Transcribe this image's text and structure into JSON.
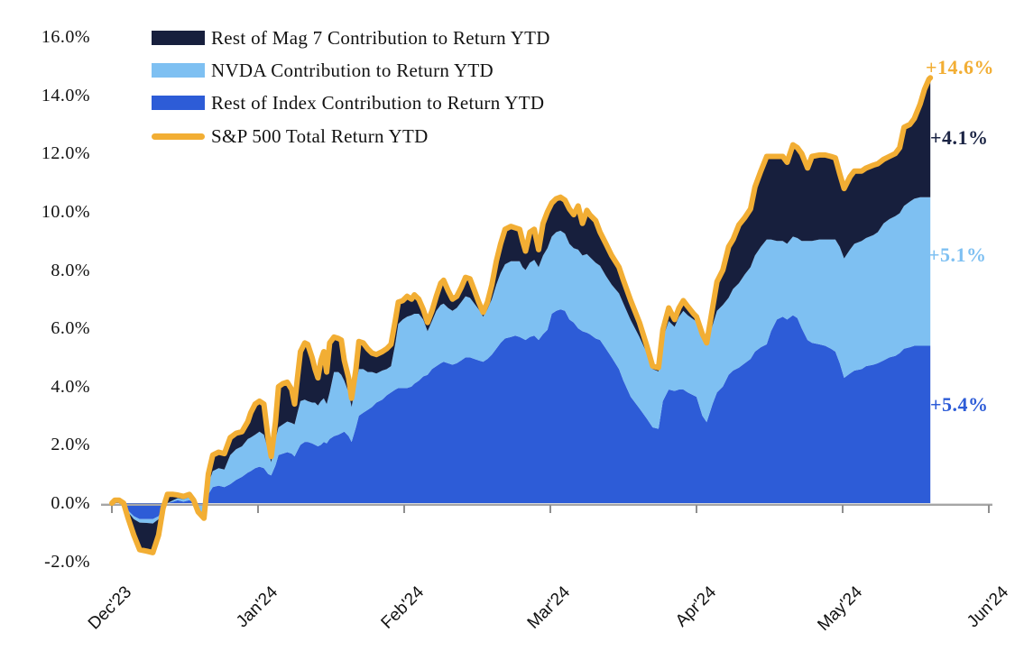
{
  "page": {
    "background": "#ffffff"
  },
  "chart_data": {
    "type": "area",
    "stacked": true,
    "title": "",
    "xlabel": "",
    "ylabel": "",
    "grid": false,
    "legend_position": "top-left-inside",
    "background": "#ffffff",
    "axis_color": "#a6a6a6",
    "y_axis_range": [
      -2.0,
      16.0
    ],
    "y_tick_step": 2.0,
    "y_ticks": [
      {
        "value": 16,
        "label": "16.0%"
      },
      {
        "value": 14,
        "label": "14.0%"
      },
      {
        "value": 12,
        "label": "12.0%"
      },
      {
        "value": 10,
        "label": "10.0%"
      },
      {
        "value": 8,
        "label": "8.0%"
      },
      {
        "value": 6,
        "label": "6.0%"
      },
      {
        "value": 4,
        "label": "4.0%"
      },
      {
        "value": 2,
        "label": "2.0%"
      },
      {
        "value": 0,
        "label": "0.0%"
      },
      {
        "value": -2,
        "label": "-2.0%"
      }
    ],
    "x_unit": "months since start of period (0 = Dec'23, 1 = Jan'24, ... 6 = Jun'24)",
    "x_ticks": [
      "Dec'23",
      "Jan'24",
      "Feb'24",
      "Mar'24",
      "Apr'24",
      "May'24",
      "Jun'24"
    ],
    "series": [
      {
        "key": "rest_of_index",
        "name": "Rest of Index Contribution to Return YTD",
        "color": "#2d5cd7",
        "type": "area",
        "final_label": "+5.4%"
      },
      {
        "key": "nvda",
        "name": "NVDA Contribution to Return YTD",
        "color": "#7ec0f2",
        "type": "area",
        "final_label": "+5.1%"
      },
      {
        "key": "rest_of_mag7",
        "name": "Rest of Mag 7 Contribution to Return YTD",
        "color": "#171f3d",
        "type": "area",
        "final_label": "+4.1%"
      },
      {
        "key": "total",
        "name": "S&P 500 Total Return YTD",
        "color": "#f2ae34",
        "type": "line",
        "derived": "sum of stacked areas",
        "final_label": "+14.6%"
      }
    ],
    "columns": [
      "t_months",
      "rest_of_index",
      "nvda",
      "rest_of_mag7"
    ],
    "points": [
      [
        0.0,
        0,
        0,
        0
      ],
      [
        0.02,
        0.05,
        0.01,
        0.04
      ],
      [
        0.05,
        0.06,
        0.02,
        0.02
      ],
      [
        0.08,
        0,
        0,
        0
      ],
      [
        0.11,
        -0.25,
        -0.05,
        -0.2
      ],
      [
        0.15,
        -0.45,
        -0.1,
        -0.55
      ],
      [
        0.19,
        -0.55,
        -0.12,
        -0.93
      ],
      [
        0.24,
        -0.55,
        -0.13,
        -0.97
      ],
      [
        0.28,
        -0.55,
        -0.15,
        -1.0
      ],
      [
        0.32,
        -0.45,
        -0.1,
        -0.55
      ],
      [
        0.35,
        -0.15,
        -0.03,
        0
      ],
      [
        0.38,
        0,
        0,
        0.3
      ],
      [
        0.42,
        0.05,
        0.05,
        0.2
      ],
      [
        0.45,
        0.1,
        0.07,
        0.11
      ],
      [
        0.49,
        0.05,
        0.08,
        0.1
      ],
      [
        0.53,
        0.1,
        0.1,
        0.1
      ],
      [
        0.56,
        0.02,
        0,
        0.08
      ],
      [
        0.59,
        -0.05,
        -0.25,
        0
      ],
      [
        0.63,
        -0.07,
        -0.45,
        0
      ],
      [
        0.66,
        0.3,
        0.35,
        0.35
      ],
      [
        0.69,
        0.55,
        0.55,
        0.55
      ],
      [
        0.73,
        0.6,
        0.6,
        0.55
      ],
      [
        0.77,
        0.55,
        0.6,
        0.55
      ],
      [
        0.81,
        0.65,
        1.0,
        0.6
      ],
      [
        0.85,
        0.8,
        1.05,
        0.55
      ],
      [
        0.89,
        0.9,
        1.05,
        0.5
      ],
      [
        0.93,
        1.05,
        1.15,
        0.6
      ],
      [
        0.95,
        1.1,
        1.15,
        0.85
      ],
      [
        0.98,
        1.2,
        1.15,
        1.05
      ],
      [
        1.01,
        1.25,
        1.2,
        1.05
      ],
      [
        1.04,
        1.2,
        1.15,
        1.05
      ],
      [
        1.07,
        1.0,
        0.8,
        0.4
      ],
      [
        1.09,
        0.95,
        0.45,
        0.2
      ],
      [
        1.12,
        1.3,
        0.9,
        0.6
      ],
      [
        1.14,
        1.65,
        0.95,
        1.4
      ],
      [
        1.17,
        1.7,
        1.0,
        1.4
      ],
      [
        1.2,
        1.75,
        1.05,
        1.35
      ],
      [
        1.23,
        1.7,
        1.05,
        1.15
      ],
      [
        1.25,
        1.6,
        1.1,
        0.7
      ],
      [
        1.27,
        1.8,
        1.3,
        1.2
      ],
      [
        1.29,
        2.0,
        1.5,
        1.7
      ],
      [
        1.32,
        2.1,
        1.45,
        1.95
      ],
      [
        1.34,
        2.1,
        1.4,
        1.95
      ],
      [
        1.37,
        2.05,
        1.4,
        1.55
      ],
      [
        1.39,
        2.0,
        1.45,
        1.15
      ],
      [
        1.41,
        1.95,
        1.4,
        0.95
      ],
      [
        1.43,
        2.0,
        1.5,
        1.4
      ],
      [
        1.45,
        2.1,
        1.5,
        1.6
      ],
      [
        1.47,
        2.05,
        1.35,
        1.1
      ],
      [
        1.49,
        2.2,
        1.6,
        1.7
      ],
      [
        1.52,
        2.3,
        2.2,
        1.2
      ],
      [
        1.55,
        2.35,
        2.15,
        1.15
      ],
      [
        1.57,
        2.4,
        2.0,
        1.2
      ],
      [
        1.59,
        2.45,
        1.75,
        0.7
      ],
      [
        1.62,
        2.3,
        1.5,
        0.5
      ],
      [
        1.64,
        2.1,
        1.2,
        0.3
      ],
      [
        1.67,
        2.6,
        1.5,
        0.5
      ],
      [
        1.69,
        3.0,
        1.6,
        0.95
      ],
      [
        1.72,
        3.1,
        1.5,
        0.9
      ],
      [
        1.75,
        3.2,
        1.3,
        0.8
      ],
      [
        1.78,
        3.3,
        1.2,
        0.65
      ],
      [
        1.81,
        3.45,
        1.0,
        0.65
      ],
      [
        1.85,
        3.55,
        1.0,
        0.65
      ],
      [
        1.88,
        3.7,
        0.9,
        0.7
      ],
      [
        1.91,
        3.8,
        0.9,
        0.75
      ],
      [
        1.94,
        3.9,
        1.6,
        0.8
      ],
      [
        1.96,
        3.95,
        2.2,
        0.75
      ],
      [
        1.99,
        3.95,
        2.35,
        0.65
      ],
      [
        2.02,
        3.95,
        2.45,
        0.7
      ],
      [
        2.05,
        4.0,
        2.45,
        0.55
      ],
      [
        2.07,
        4.1,
        2.4,
        0.65
      ],
      [
        2.1,
        4.2,
        2.3,
        0.5
      ],
      [
        2.13,
        4.35,
        1.95,
        0.35
      ],
      [
        2.16,
        4.4,
        1.5,
        0.3
      ],
      [
        2.19,
        4.6,
        1.65,
        0.35
      ],
      [
        2.22,
        4.7,
        1.9,
        0.5
      ],
      [
        2.25,
        4.8,
        2.0,
        0.75
      ],
      [
        2.27,
        4.85,
        2.0,
        0.8
      ],
      [
        2.3,
        4.8,
        1.9,
        0.6
      ],
      [
        2.33,
        4.75,
        1.85,
        0.4
      ],
      [
        2.36,
        4.8,
        1.9,
        0.4
      ],
      [
        2.39,
        4.9,
        2.0,
        0.5
      ],
      [
        2.42,
        5.0,
        2.1,
        0.65
      ],
      [
        2.45,
        5.0,
        2.05,
        0.65
      ],
      [
        2.48,
        4.95,
        1.9,
        0.45
      ],
      [
        2.51,
        4.9,
        1.75,
        0.25
      ],
      [
        2.54,
        4.85,
        1.55,
        0.15
      ],
      [
        2.57,
        4.95,
        1.7,
        0.25
      ],
      [
        2.6,
        5.1,
        1.9,
        0.5
      ],
      [
        2.63,
        5.3,
        2.2,
        0.8
      ],
      [
        2.66,
        5.5,
        2.4,
        1.0
      ],
      [
        2.69,
        5.65,
        2.55,
        1.2
      ],
      [
        2.73,
        5.7,
        2.6,
        1.2
      ],
      [
        2.76,
        5.75,
        2.55,
        1.15
      ],
      [
        2.79,
        5.7,
        2.6,
        1.1
      ],
      [
        2.81,
        5.65,
        2.45,
        0.9
      ],
      [
        2.83,
        5.6,
        2.4,
        0.65
      ],
      [
        2.86,
        5.7,
        2.55,
        1.05
      ],
      [
        2.89,
        5.75,
        2.6,
        1.05
      ],
      [
        2.92,
        5.6,
        2.5,
        0.6
      ],
      [
        2.95,
        5.8,
        2.7,
        1.1
      ],
      [
        2.98,
        5.95,
        2.8,
        1.25
      ],
      [
        3.01,
        6.5,
        2.65,
        1.15
      ],
      [
        3.04,
        6.6,
        2.7,
        1.15
      ],
      [
        3.07,
        6.65,
        2.7,
        1.15
      ],
      [
        3.1,
        6.6,
        2.65,
        1.15
      ],
      [
        3.13,
        6.3,
        2.6,
        1.2
      ],
      [
        3.16,
        6.2,
        2.55,
        1.15
      ],
      [
        3.19,
        6.0,
        2.7,
        1.5
      ],
      [
        3.22,
        5.9,
        2.6,
        1.1
      ],
      [
        3.25,
        5.85,
        2.7,
        1.5
      ],
      [
        3.27,
        5.8,
        2.65,
        1.45
      ],
      [
        3.31,
        5.65,
        2.6,
        1.45
      ],
      [
        3.34,
        5.6,
        2.55,
        1.15
      ],
      [
        3.38,
        5.3,
        2.5,
        1.1
      ],
      [
        3.42,
        5.0,
        2.5,
        1.0
      ],
      [
        3.47,
        4.6,
        2.6,
        0.9
      ],
      [
        3.5,
        4.2,
        2.65,
        0.8
      ],
      [
        3.55,
        3.65,
        2.63,
        0.67
      ],
      [
        3.61,
        3.25,
        2.45,
        0.5
      ],
      [
        3.66,
        2.9,
        2.25,
        0.25
      ],
      [
        3.7,
        2.6,
        2.0,
        0.1
      ],
      [
        3.74,
        2.55,
        1.97,
        0.13
      ],
      [
        3.77,
        3.5,
        2.15,
        0.3
      ],
      [
        3.81,
        3.9,
        2.35,
        0.45
      ],
      [
        3.85,
        3.85,
        2.2,
        0.25
      ],
      [
        3.88,
        3.9,
        2.5,
        0.3
      ],
      [
        3.91,
        3.9,
        2.7,
        0.35
      ],
      [
        3.94,
        3.8,
        2.65,
        0.3
      ],
      [
        3.98,
        3.7,
        2.6,
        0.2
      ],
      [
        4.0,
        3.65,
        2.58,
        0.17
      ],
      [
        4.04,
        3.0,
        2.65,
        0.15
      ],
      [
        4.07,
        2.78,
        2.64,
        0.08
      ],
      [
        4.11,
        3.4,
        2.7,
        0.6
      ],
      [
        4.14,
        3.8,
        2.8,
        1.0
      ],
      [
        4.18,
        4.0,
        2.8,
        1.2
      ],
      [
        4.22,
        4.4,
        2.65,
        1.75
      ],
      [
        4.25,
        4.55,
        2.8,
        1.7
      ],
      [
        4.29,
        4.65,
        2.9,
        2.0
      ],
      [
        4.33,
        4.8,
        3.05,
        1.95
      ],
      [
        4.37,
        4.95,
        3.15,
        2.0
      ],
      [
        4.4,
        5.2,
        3.3,
        2.35
      ],
      [
        4.44,
        5.35,
        3.45,
        2.6
      ],
      [
        4.48,
        5.45,
        3.6,
        2.85
      ],
      [
        4.51,
        5.9,
        3.15,
        2.85
      ],
      [
        4.55,
        6.3,
        2.7,
        2.9
      ],
      [
        4.59,
        6.4,
        2.6,
        2.9
      ],
      [
        4.62,
        6.3,
        2.6,
        2.8
      ],
      [
        4.66,
        6.45,
        2.7,
        3.15
      ],
      [
        4.69,
        6.35,
        2.75,
        3.1
      ],
      [
        4.72,
        6.0,
        3.0,
        3.0
      ],
      [
        4.76,
        5.6,
        3.4,
        2.5
      ],
      [
        4.79,
        5.5,
        3.5,
        2.9
      ],
      [
        4.84,
        5.45,
        3.6,
        2.9
      ],
      [
        4.88,
        5.4,
        3.65,
        2.9
      ],
      [
        4.92,
        5.3,
        3.75,
        2.85
      ],
      [
        4.95,
        5.2,
        3.85,
        2.8
      ],
      [
        4.98,
        4.8,
        4.0,
        2.5
      ],
      [
        5.01,
        4.3,
        4.1,
        2.4
      ],
      [
        5.05,
        4.45,
        4.25,
        2.5
      ],
      [
        5.08,
        4.55,
        4.35,
        2.5
      ],
      [
        5.13,
        4.6,
        4.4,
        2.4
      ],
      [
        5.16,
        4.7,
        4.4,
        2.4
      ],
      [
        5.21,
        4.75,
        4.45,
        2.4
      ],
      [
        5.24,
        4.8,
        4.5,
        2.35
      ],
      [
        5.28,
        4.9,
        4.7,
        2.2
      ],
      [
        5.32,
        5.0,
        4.75,
        2.15
      ],
      [
        5.36,
        5.05,
        4.8,
        2.15
      ],
      [
        5.39,
        5.15,
        4.8,
        2.25
      ],
      [
        5.42,
        5.3,
        4.9,
        2.7
      ],
      [
        5.46,
        5.35,
        5.0,
        2.65
      ],
      [
        5.49,
        5.4,
        5.05,
        2.75
      ],
      [
        5.53,
        5.4,
        5.1,
        3.2
      ],
      [
        5.56,
        5.4,
        5.1,
        3.7
      ],
      [
        5.59,
        5.4,
        5.1,
        4.05
      ],
      [
        5.6,
        5.4,
        5.1,
        4.1
      ]
    ],
    "end_values": {
      "total": "+14.6%",
      "rest_of_mag7": "+4.1%",
      "nvda": "+5.1%",
      "rest_of_index": "+5.4%"
    }
  },
  "legend": {
    "items": [
      {
        "label": "Rest of Mag 7 Contribution to Return YTD",
        "swatch": "navy-rect",
        "color": "#171f3d"
      },
      {
        "label": "NVDA Contribution to Return YTD",
        "swatch": "lightblue-rect",
        "color": "#7ec0f2"
      },
      {
        "label": "Rest of Index Contribution to Return YTD",
        "swatch": "blue-rect",
        "color": "#2d5cd7"
      },
      {
        "label": "S&P 500 Total Return YTD",
        "swatch": "gold-line",
        "color": "#f2ae34"
      }
    ]
  },
  "annotations": [
    {
      "text": "+14.6%",
      "color": "#f2ae34",
      "series": "S&P 500 Total Return YTD"
    },
    {
      "text": "+4.1%",
      "color": "#1b2444",
      "series": "Rest of Mag 7 Contribution to Return YTD"
    },
    {
      "text": "+5.1%",
      "color": "#7ec0f2",
      "series": "NVDA Contribution to Return YTD"
    },
    {
      "text": "+5.4%",
      "color": "#2d5cd7",
      "series": "Rest of Index Contribution to Return YTD"
    }
  ]
}
